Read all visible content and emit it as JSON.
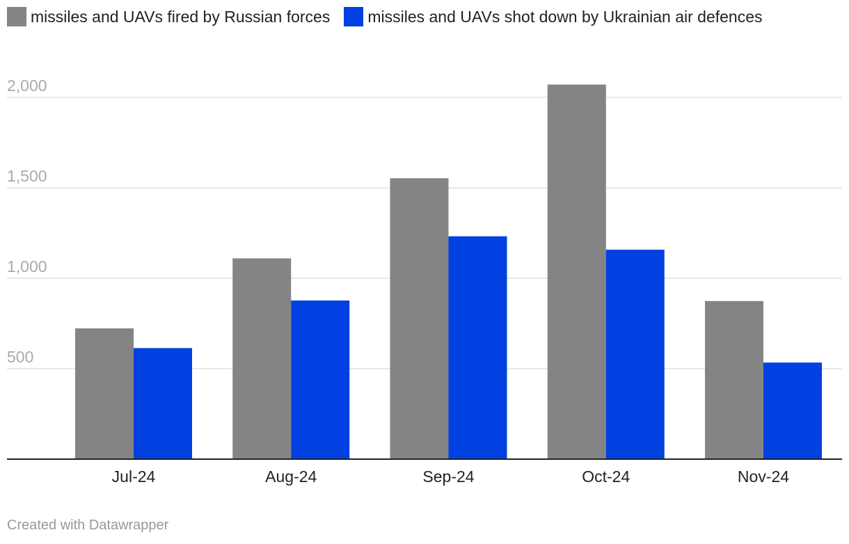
{
  "chart_data": {
    "type": "bar",
    "categories": [
      "Jul-24",
      "Aug-24",
      "Sep-24",
      "Oct-24",
      "Nov-24"
    ],
    "series": [
      {
        "name": "missiles and UAVs fired by Russian forces",
        "color": "#848484",
        "values": [
          723,
          1110,
          1553,
          2071,
          874
        ]
      },
      {
        "name": "missiles and UAVs shot down by Ukrainian air defences",
        "color": "#0241e1",
        "values": [
          614,
          877,
          1232,
          1158,
          534
        ]
      }
    ],
    "yticks": [
      {
        "value": 500,
        "label": "500"
      },
      {
        "value": 1000,
        "label": "1,000"
      },
      {
        "value": 1500,
        "label": "1,500"
      },
      {
        "value": 2000,
        "label": "2,000"
      }
    ],
    "ylim": [
      0,
      2000
    ],
    "grid": true,
    "legend_position": "top-left",
    "title": "",
    "xlabel": "",
    "ylabel": ""
  },
  "footer": {
    "credit": "Created with Datawrapper"
  }
}
